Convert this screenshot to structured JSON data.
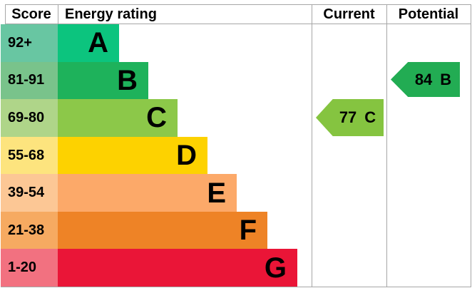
{
  "header": {
    "score": "Score",
    "energy_rating": "Energy rating",
    "current": "Current",
    "potential": "Potential"
  },
  "bands": [
    {
      "letter": "A",
      "score_range": "92+",
      "bar_color": "#0cc47e",
      "score_cell_color": "#68c6a2"
    },
    {
      "letter": "B",
      "score_range": "81-91",
      "bar_color": "#1eb25b",
      "score_cell_color": "#79c38b"
    },
    {
      "letter": "C",
      "score_range": "69-80",
      "bar_color": "#8cc849",
      "score_cell_color": "#afd589"
    },
    {
      "letter": "D",
      "score_range": "55-68",
      "bar_color": "#fdd200",
      "score_cell_color": "#fde47e"
    },
    {
      "letter": "E",
      "score_range": "39-54",
      "bar_color": "#fca969",
      "score_cell_color": "#fcc795"
    },
    {
      "letter": "F",
      "score_range": "21-38",
      "bar_color": "#ee8326",
      "score_cell_color": "#f6aa61"
    },
    {
      "letter": "G",
      "score_range": "1-20",
      "bar_color": "#ea1537",
      "score_cell_color": "#f27180"
    }
  ],
  "current": {
    "score": "77",
    "band": "C",
    "arrow_color": "#85c440"
  },
  "potential": {
    "score": "84",
    "band": "B",
    "arrow_color": "#22ac53"
  },
  "colors": {
    "grid_line": "#a6a6a6",
    "text": "#000000",
    "background": "#ffffff"
  },
  "chart_data": {
    "type": "bar",
    "title": "Energy rating (EPC) band chart",
    "columns": [
      "Score",
      "Energy rating",
      "Current",
      "Potential"
    ],
    "categories": [
      "A",
      "B",
      "C",
      "D",
      "E",
      "F",
      "G"
    ],
    "score_ranges": [
      "92+",
      "81-91",
      "69-80",
      "55-68",
      "39-54",
      "21-38",
      "1-20"
    ],
    "bar_relative_widths": [
      1,
      2,
      3,
      4,
      5,
      6,
      7
    ],
    "current": {
      "score": 77,
      "band": "C"
    },
    "potential": {
      "score": 84,
      "band": "B"
    },
    "legend_position": "none",
    "grid": "column separators for Current and Potential only"
  }
}
